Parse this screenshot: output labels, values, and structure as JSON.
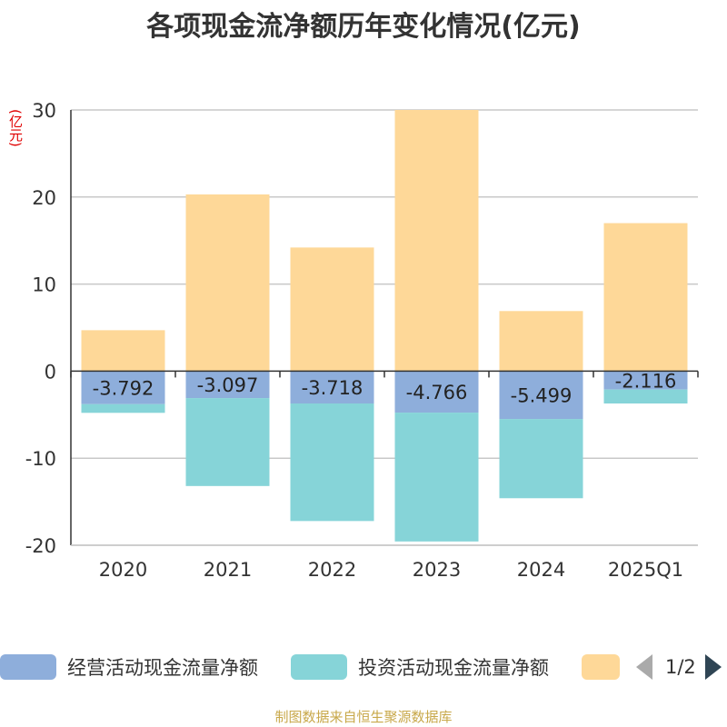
{
  "chart_data": {
    "type": "bar",
    "stacked": true,
    "title": "各项现金流净额历年变化情况(亿元)",
    "unit_label": "(亿元)",
    "categories": [
      "2020",
      "2021",
      "2022",
      "2023",
      "2024",
      "2025Q1"
    ],
    "series": [
      {
        "name": "经营活动现金流量净额",
        "color": "#8eaedb",
        "values": [
          -3.792,
          -3.097,
          -3.718,
          -4.766,
          -5.499,
          -2.116
        ]
      },
      {
        "name": "投资活动现金流量净额",
        "color": "#86d4d8",
        "values": [
          -1.0,
          -10.1,
          -13.5,
          -14.8,
          -9.1,
          -1.6
        ]
      },
      {
        "name": "",
        "color": "#fed898",
        "values": [
          4.7,
          20.3,
          14.2,
          30.0,
          6.9,
          17.0
        ]
      }
    ],
    "data_labels": [
      "-3.792",
      "-3.097",
      "-3.718",
      "-4.766",
      "-5.499",
      "-2.116"
    ],
    "ylim": [
      -20,
      30
    ],
    "yticks": [
      30,
      20,
      10,
      0,
      -10,
      -20
    ],
    "grid": true,
    "legend_position": "bottom"
  },
  "legend": {
    "items": [
      "经营活动现金流量净额",
      "投资活动现金流量净额",
      ""
    ],
    "pager": "1/2"
  },
  "source": "制图数据来自恒生聚源数据库"
}
